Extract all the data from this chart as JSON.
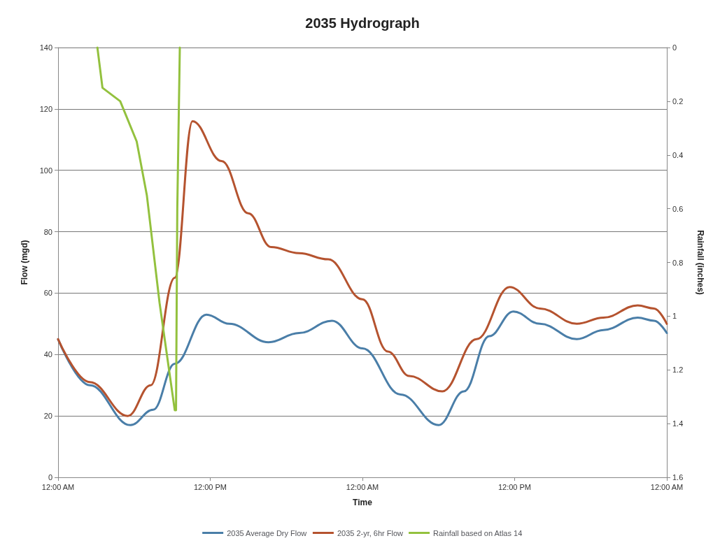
{
  "chart_data": {
    "type": "line",
    "title": "2035 Hydrograph",
    "xlabel": "Time",
    "ylabel": "Flow (mgd)",
    "y2label": "Rainfall (inches)",
    "xlim": [
      "2035-01-01T00:00",
      "2035-01-03T00:00"
    ],
    "xticks": [
      {
        "value": "2035-01-01T00:00",
        "label": "12:00 AM"
      },
      {
        "value": "2035-01-01T12:00",
        "label": "12:00 PM"
      },
      {
        "value": "2035-01-02T00:00",
        "label": "12:00 AM"
      },
      {
        "value": "2035-01-02T12:00",
        "label": "12:00 PM"
      },
      {
        "value": "2035-01-03T00:00",
        "label": "12:00 AM"
      }
    ],
    "ylim": [
      0,
      140
    ],
    "yticks": [
      0,
      20,
      40,
      60,
      80,
      100,
      120,
      140
    ],
    "y2lim": [
      1.6,
      0
    ],
    "y2ticks": [
      0,
      0.2,
      0.4,
      0.6,
      0.8,
      1,
      1.2,
      1.4,
      1.6
    ],
    "grid": "y",
    "legend": "bottom",
    "marker": "none",
    "line_style": "solid",
    "series": [
      {
        "name": "2035 Average Dry Flow",
        "color": "#4a7ea8",
        "x": [
          "2035-01-01T00:00",
          "2035-01-01T02:30",
          "2035-01-01T05:42",
          "2035-01-01T07:30",
          "2035-01-01T09:12",
          "2035-01-01T11:42",
          "2035-01-01T13:30",
          "2035-01-01T16:36",
          "2035-01-01T19:00",
          "2035-01-01T21:36",
          "2035-01-02T00:00",
          "2035-01-02T03:00",
          "2035-01-02T06:00",
          "2035-01-02T08:00",
          "2035-01-02T10:00",
          "2035-01-02T11:54",
          "2035-01-02T14:00",
          "2035-01-02T16:54",
          "2035-01-02T19:00",
          "2035-01-02T21:42",
          "2035-01-02T23:00",
          "2035-01-03T00:00"
        ],
        "values": [
          45,
          30,
          17,
          22,
          37,
          53,
          50,
          44,
          47,
          51,
          42,
          27,
          17,
          28,
          46,
          54,
          50,
          45,
          48,
          52,
          51,
          47
        ]
      },
      {
        "name": "2035 2-yr, 6hr Flow",
        "color": "#b5532f",
        "x": [
          "2035-01-01T00:00",
          "2035-01-01T02:30",
          "2035-01-01T05:30",
          "2035-01-01T07:18",
          "2035-01-01T09:12",
          "2035-01-01T10:36",
          "2035-01-01T12:54",
          "2035-01-01T15:00",
          "2035-01-01T16:48",
          "2035-01-01T19:00",
          "2035-01-01T21:18",
          "2035-01-02T00:00",
          "2035-01-02T02:00",
          "2035-01-02T03:42",
          "2035-01-02T06:18",
          "2035-01-02T09:00",
          "2035-01-02T11:36",
          "2035-01-02T14:00",
          "2035-01-02T16:54",
          "2035-01-02T19:00",
          "2035-01-02T21:42",
          "2035-01-02T23:00",
          "2035-01-03T00:00"
        ],
        "values": [
          45,
          31,
          20,
          30,
          65,
          116,
          103,
          86,
          75,
          73,
          71,
          58,
          41,
          33,
          28,
          45,
          62,
          55,
          50,
          52,
          56,
          55,
          50
        ]
      },
      {
        "name": "Rainfall based on Atlas 14",
        "color": "#93c13e",
        "axis": "y2",
        "x": [
          "2035-01-01T03:06",
          "2035-01-01T03:30",
          "2035-01-01T04:54",
          "2035-01-01T06:12",
          "2035-01-01T07:00",
          "2035-01-01T08:00",
          "2035-01-01T09:12",
          "2035-01-01T09:18",
          "2035-01-01T09:24",
          "2035-01-01T09:36"
        ],
        "values": [
          0,
          0.15,
          0.2,
          0.35,
          0.55,
          0.95,
          1.35,
          1.35,
          0.6,
          0
        ]
      }
    ]
  }
}
